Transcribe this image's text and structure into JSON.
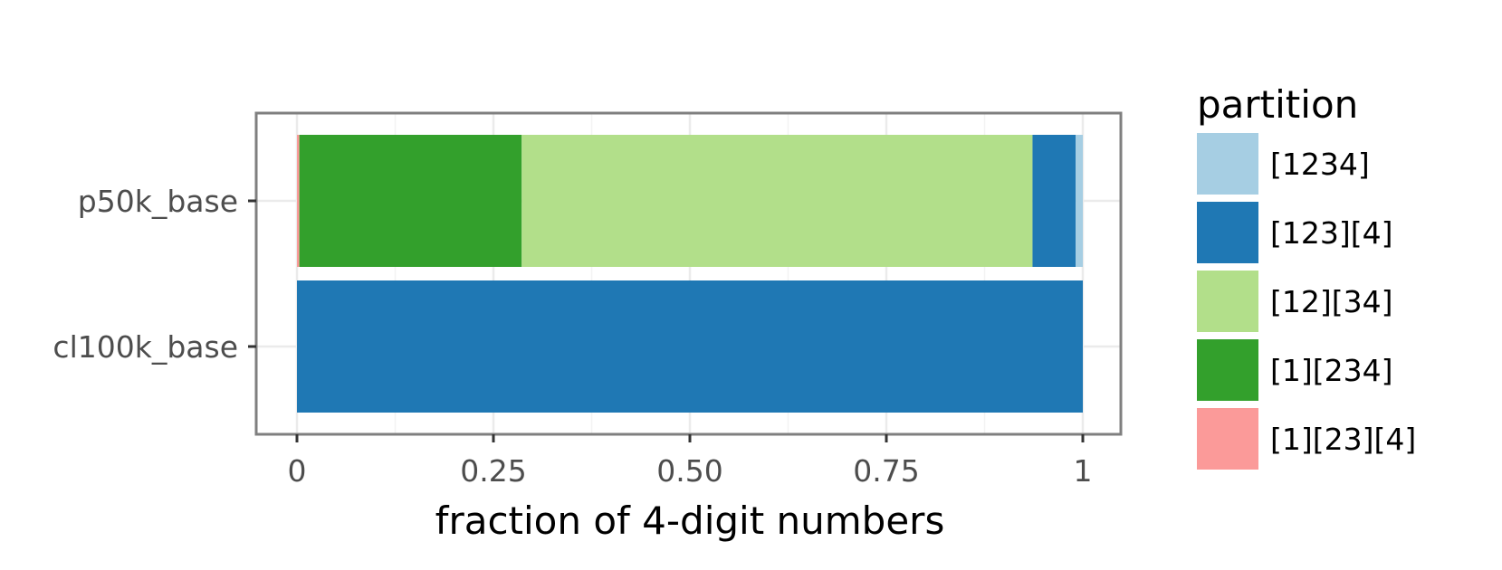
{
  "chart_data": {
    "type": "bar",
    "orientation": "horizontal",
    "stacked": true,
    "title": "",
    "xlabel": "fraction of 4-digit numbers",
    "ylabel": "",
    "xlim": [
      0,
      1
    ],
    "x_ticks": [
      0,
      0.25,
      0.5,
      0.75,
      1
    ],
    "x_tick_labels": [
      "0",
      "0.25",
      "0.50",
      "0.75",
      "1"
    ],
    "grid": true,
    "legend_title": "partition",
    "legend_position": "right",
    "categories": [
      "p50k_base",
      "cl100k_base"
    ],
    "series": [
      {
        "name": "[1234]",
        "color": "#a6cee3",
        "values": [
          0.009,
          0.0
        ]
      },
      {
        "name": "[123][4]",
        "color": "#1f78b4",
        "values": [
          0.055,
          1.0
        ]
      },
      {
        "name": "[12][34]",
        "color": "#b2df8a",
        "values": [
          0.65,
          0.0
        ]
      },
      {
        "name": "[1][234]",
        "color": "#33a02c",
        "values": [
          0.283,
          0.0
        ]
      },
      {
        "name": "[1][23][4]",
        "color": "#fb9a99",
        "values": [
          0.003,
          0.0
        ]
      }
    ]
  }
}
